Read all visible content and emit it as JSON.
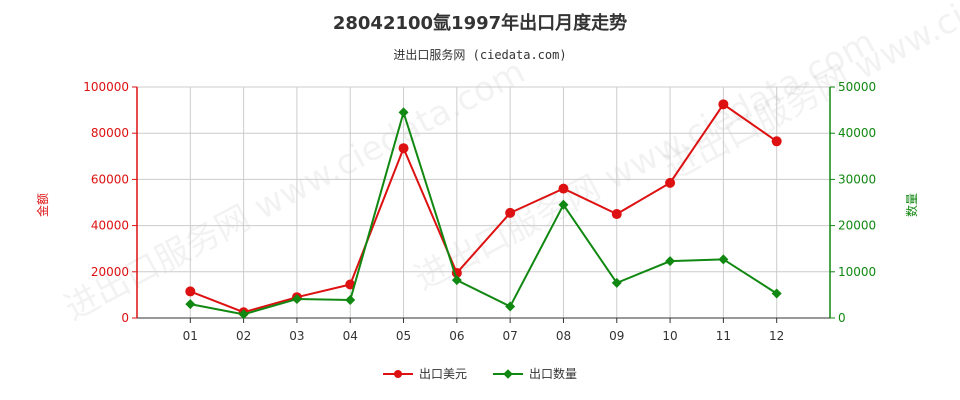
{
  "title": "28042100氩1997年出口月度走势",
  "subtitle": "进出口服务网 (ciedata.com)",
  "watermark": "进出口服务网 www.ciedata.com",
  "colors": {
    "amount": "#dd1111",
    "quantity": "#118811",
    "grid": "#cccccc",
    "axis": "#333333"
  },
  "chart_data": {
    "type": "line",
    "title": "28042100氩1997年出口月度走势",
    "categories": [
      "01",
      "02",
      "03",
      "04",
      "05",
      "06",
      "07",
      "08",
      "09",
      "10",
      "11",
      "12"
    ],
    "y_left": {
      "label": "金额",
      "min": 0,
      "max": 100000,
      "ticks": [
        "0",
        "20000",
        "40000",
        "60000",
        "80000",
        "100000"
      ]
    },
    "y_right": {
      "label": "数量",
      "min": 0,
      "max": 50000,
      "ticks": [
        "0",
        "10000",
        "20000",
        "30000",
        "40000",
        "50000"
      ]
    },
    "grid": true,
    "legend_position": "bottom",
    "series": [
      {
        "name": "出口美元",
        "axis": "left",
        "marker": "circle",
        "color": "#dd1111",
        "values": [
          11500,
          2500,
          9000,
          14500,
          73500,
          19500,
          45500,
          56000,
          45000,
          58500,
          92500,
          76500
        ]
      },
      {
        "name": "出口数量",
        "axis": "right",
        "marker": "diamond",
        "color": "#118811",
        "values": [
          3000,
          800,
          4100,
          3900,
          44500,
          8200,
          2500,
          24500,
          7600,
          12300,
          12700,
          5300
        ]
      }
    ]
  }
}
